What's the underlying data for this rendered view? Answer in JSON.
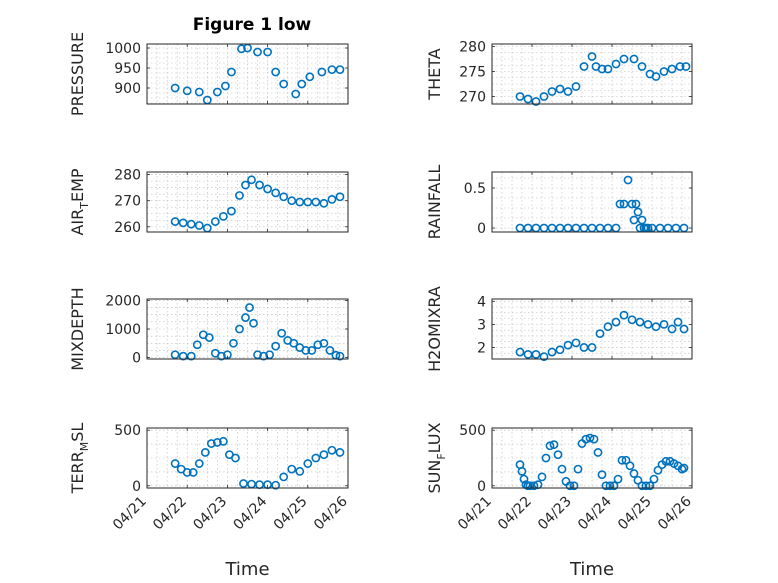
{
  "figure": {
    "title": "Figure 1 low",
    "marker_color": "#0072BD",
    "grid": true
  },
  "chart_data": [
    {
      "type": "scatter",
      "name": "pressure",
      "ylabel": "PRESSURE",
      "xlabel": "",
      "ylim": [
        860,
        1010
      ],
      "yticks": [
        900,
        950,
        1000
      ],
      "ytick_labels": [
        "900",
        "950",
        "1000"
      ],
      "xlim": [
        0,
        5
      ],
      "xticks": [],
      "xtick_labels": [],
      "x": [
        0.7,
        1.0,
        1.3,
        1.5,
        1.75,
        1.95,
        2.1,
        2.35,
        2.5,
        2.75,
        3.0,
        3.2,
        3.4,
        3.7,
        3.85,
        4.05,
        4.35,
        4.6,
        4.8
      ],
      "y": [
        900,
        893,
        890,
        870,
        890,
        905,
        940,
        998,
        1000,
        990,
        990,
        940,
        910,
        885,
        910,
        928,
        940,
        946,
        946
      ]
    },
    {
      "type": "scatter",
      "name": "theta",
      "ylabel": "THETA",
      "xlabel": "",
      "ylim": [
        268.5,
        280.5
      ],
      "yticks": [
        270,
        275,
        280
      ],
      "ytick_labels": [
        "270",
        "275",
        "280"
      ],
      "xlim": [
        0,
        5
      ],
      "xticks": [],
      "xtick_labels": [],
      "x": [
        0.7,
        0.9,
        1.1,
        1.3,
        1.5,
        1.7,
        1.9,
        2.1,
        2.3,
        2.5,
        2.6,
        2.75,
        2.9,
        3.1,
        3.3,
        3.55,
        3.75,
        3.95,
        4.1,
        4.3,
        4.5,
        4.7,
        4.85
      ],
      "y": [
        270,
        269.5,
        269,
        270,
        271,
        271.5,
        271,
        272,
        276,
        278,
        276,
        275.5,
        275.5,
        276.5,
        277.5,
        277.5,
        276,
        274.5,
        274,
        275,
        275.5,
        276,
        276
      ]
    },
    {
      "type": "scatter",
      "name": "air_temp",
      "ylabel": "AIR_TEMP",
      "ylabel_main": "AIR",
      "ylabel_sub": "T",
      "ylabel_rest": "EMP",
      "xlabel": "",
      "ylim": [
        258,
        281
      ],
      "yticks": [
        260,
        270,
        280
      ],
      "ytick_labels": [
        "260",
        "270",
        "280"
      ],
      "xlim": [
        0,
        5
      ],
      "xticks": [],
      "xtick_labels": [],
      "x": [
        0.7,
        0.9,
        1.1,
        1.3,
        1.5,
        1.7,
        1.9,
        2.1,
        2.3,
        2.45,
        2.6,
        2.8,
        3.0,
        3.2,
        3.4,
        3.6,
        3.8,
        4.0,
        4.2,
        4.4,
        4.6,
        4.8
      ],
      "y": [
        262,
        261.5,
        261,
        260.5,
        259.5,
        262,
        264,
        266,
        272,
        276,
        278,
        276,
        274.5,
        273,
        271.5,
        270,
        269.5,
        269.5,
        269.5,
        269,
        270.5,
        271.5
      ]
    },
    {
      "type": "scatter",
      "name": "rainfall",
      "ylabel": "RAINFALL",
      "xlabel": "",
      "ylim": [
        -0.05,
        0.7
      ],
      "yticks": [
        0,
        0.5
      ],
      "ytick_labels": [
        "0",
        "0.5"
      ],
      "xlim": [
        0,
        5
      ],
      "xticks": [],
      "xtick_labels": [],
      "x": [
        0.7,
        0.9,
        1.1,
        1.3,
        1.5,
        1.7,
        1.9,
        2.1,
        2.3,
        2.5,
        2.7,
        2.9,
        3.1,
        3.2,
        3.3,
        3.4,
        3.5,
        3.55,
        3.6,
        3.65,
        3.7,
        3.75,
        3.8,
        3.85,
        3.9,
        4.0,
        4.2,
        4.4,
        4.6,
        4.8
      ],
      "y": [
        0,
        0,
        0,
        0,
        0,
        0,
        0,
        0,
        0,
        0,
        0,
        0,
        0,
        0.3,
        0.3,
        0.6,
        0.3,
        0.1,
        0.3,
        0.2,
        0,
        0.1,
        0,
        0,
        0,
        0,
        0,
        0,
        0,
        0
      ]
    },
    {
      "type": "scatter",
      "name": "mixdepth",
      "ylabel": "MIXDEPTH",
      "xlabel": "",
      "ylim": [
        -50,
        2050
      ],
      "yticks": [
        0,
        1000,
        2000
      ],
      "ytick_labels": [
        "0",
        "1000",
        "2000"
      ],
      "xlim": [
        0,
        5
      ],
      "xticks": [],
      "xtick_labels": [],
      "x": [
        0.7,
        0.9,
        1.1,
        1.25,
        1.4,
        1.55,
        1.7,
        1.85,
        2.0,
        2.15,
        2.3,
        2.45,
        2.55,
        2.65,
        2.75,
        2.9,
        3.05,
        3.2,
        3.35,
        3.5,
        3.65,
        3.8,
        3.95,
        4.1,
        4.25,
        4.4,
        4.55,
        4.7,
        4.8
      ],
      "y": [
        100,
        50,
        50,
        450,
        800,
        700,
        150,
        50,
        100,
        500,
        1000,
        1400,
        1750,
        1200,
        100,
        50,
        100,
        400,
        850,
        600,
        500,
        350,
        250,
        250,
        450,
        500,
        250,
        80,
        50
      ]
    },
    {
      "type": "scatter",
      "name": "h2omixra",
      "ylabel": "H2OMIXRA",
      "xlabel": "",
      "ylim": [
        1.5,
        4.1
      ],
      "yticks": [
        2,
        3,
        4
      ],
      "ytick_labels": [
        "2",
        "3",
        "4"
      ],
      "xlim": [
        0,
        5
      ],
      "xticks": [],
      "xtick_labels": [],
      "x": [
        0.7,
        0.9,
        1.1,
        1.3,
        1.5,
        1.7,
        1.9,
        2.1,
        2.3,
        2.5,
        2.7,
        2.9,
        3.1,
        3.3,
        3.5,
        3.7,
        3.9,
        4.1,
        4.3,
        4.5,
        4.65,
        4.8
      ],
      "y": [
        1.8,
        1.7,
        1.7,
        1.6,
        1.8,
        1.9,
        2.1,
        2.2,
        2.0,
        2.0,
        2.6,
        2.9,
        3.1,
        3.4,
        3.2,
        3.1,
        3.0,
        2.9,
        3.0,
        2.8,
        3.1,
        2.8
      ]
    },
    {
      "type": "scatter",
      "name": "terr_msl",
      "ylabel": "TERR_MSL",
      "ylabel_main": "TERR",
      "ylabel_sub": "M",
      "ylabel_rest": "SL",
      "xlabel": "Time",
      "ylim": [
        -20,
        520
      ],
      "yticks": [
        0,
        500
      ],
      "ytick_labels": [
        "0",
        "500"
      ],
      "xlim": [
        0,
        5
      ],
      "xticks": [
        0,
        1,
        2,
        3,
        4,
        5
      ],
      "xtick_labels": [
        "04/21",
        "04/22",
        "04/23",
        "04/24",
        "04/25",
        "04/26"
      ],
      "x": [
        0.7,
        0.85,
        1.0,
        1.15,
        1.3,
        1.45,
        1.6,
        1.75,
        1.9,
        2.05,
        2.2,
        2.4,
        2.6,
        2.8,
        3.0,
        3.2,
        3.4,
        3.6,
        3.8,
        4.0,
        4.2,
        4.4,
        4.6,
        4.8
      ],
      "y": [
        200,
        150,
        120,
        120,
        200,
        300,
        380,
        390,
        400,
        280,
        250,
        20,
        15,
        10,
        10,
        5,
        80,
        150,
        130,
        200,
        250,
        280,
        320,
        300
      ]
    },
    {
      "type": "scatter",
      "name": "sun_flux",
      "ylabel": "SUN_FLUX",
      "ylabel_main": "SUN",
      "ylabel_sub": "F",
      "ylabel_rest": "LUX",
      "xlabel": "Time",
      "ylim": [
        -20,
        520
      ],
      "yticks": [
        0,
        500
      ],
      "ytick_labels": [
        "0",
        "500"
      ],
      "xlim": [
        0,
        5
      ],
      "xticks": [
        0,
        1,
        2,
        3,
        4,
        5
      ],
      "xtick_labels": [
        "04/21",
        "04/22",
        "04/23",
        "04/24",
        "04/25",
        "04/26"
      ],
      "x": [
        0.7,
        0.75,
        0.8,
        0.85,
        0.9,
        0.95,
        1.05,
        1.15,
        1.25,
        1.35,
        1.45,
        1.55,
        1.65,
        1.75,
        1.85,
        1.95,
        2.05,
        2.15,
        2.25,
        2.35,
        2.45,
        2.55,
        2.65,
        2.75,
        2.85,
        2.95,
        3.05,
        3.15,
        3.25,
        3.35,
        3.45,
        3.55,
        3.65,
        3.75,
        3.85,
        3.95,
        4.05,
        4.15,
        4.25,
        4.35,
        4.45,
        4.55,
        4.65,
        4.75,
        4.8
      ],
      "y": [
        190,
        130,
        60,
        10,
        0,
        0,
        0,
        10,
        80,
        250,
        360,
        370,
        280,
        150,
        40,
        0,
        0,
        150,
        380,
        420,
        430,
        420,
        300,
        100,
        0,
        0,
        0,
        60,
        230,
        230,
        180,
        110,
        50,
        0,
        0,
        0,
        60,
        140,
        190,
        220,
        220,
        200,
        180,
        150,
        160
      ]
    }
  ]
}
